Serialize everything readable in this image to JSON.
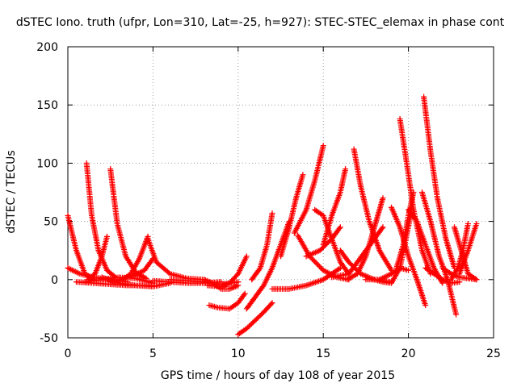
{
  "chart_data": {
    "type": "scatter",
    "title": "dSTEC Iono. truth (ufpr, Lon=310, Lat=-25, h=927): STEC-STEC_elemax in phase cont",
    "xlabel": "GPS time / hours of day 108 of year 2015",
    "ylabel": "dSTEC  / TECUs",
    "xlim": [
      0,
      25
    ],
    "ylim": [
      -50,
      200
    ],
    "xticks": [
      "0",
      "5",
      "10",
      "15",
      "20",
      "25"
    ],
    "yticks": [
      "-50",
      "0",
      "50",
      "100",
      "150",
      "200"
    ],
    "grid": true,
    "marker": "+",
    "color": "#ff0000",
    "series": [
      {
        "x": [
          0.0,
          0.5,
          1.0,
          1.5
        ],
        "y": [
          55,
          25,
          5,
          0
        ]
      },
      {
        "x": [
          1.1,
          1.4,
          1.8,
          2.3,
          2.8
        ],
        "y": [
          100,
          55,
          25,
          8,
          2
        ]
      },
      {
        "x": [
          1.2,
          1.6,
          2.0,
          2.3
        ],
        "y": [
          0,
          5,
          20,
          37
        ]
      },
      {
        "x": [
          2.5,
          2.9,
          3.4,
          4.0,
          4.6
        ],
        "y": [
          95,
          48,
          20,
          6,
          1
        ]
      },
      {
        "x": [
          3.2,
          3.7,
          4.2,
          4.7
        ],
        "y": [
          0,
          5,
          18,
          37
        ]
      },
      {
        "x": [
          4.7,
          5.2,
          6.0,
          7.0,
          8.0
        ],
        "y": [
          35,
          15,
          5,
          1,
          0
        ]
      },
      {
        "x": [
          0.0,
          0.7,
          1.5,
          2.5,
          3.5
        ],
        "y": [
          10,
          5,
          2,
          0,
          -2
        ]
      },
      {
        "x": [
          0.5,
          1.5,
          2.5,
          3.5,
          4.5,
          5.0
        ],
        "y": [
          -2,
          -3,
          -4,
          -5,
          -5,
          -5
        ]
      },
      {
        "x": [
          1.0,
          2.0,
          3.0,
          4.0,
          5.0
        ],
        "y": [
          -2,
          0,
          2,
          1,
          -3
        ]
      },
      {
        "x": [
          2.0,
          3.0,
          4.0,
          5.0,
          6.0
        ],
        "y": [
          2,
          -3,
          -5,
          -6,
          -3
        ]
      },
      {
        "x": [
          3.0,
          3.8,
          4.5,
          5.0
        ],
        "y": [
          0,
          3,
          8,
          18
        ]
      },
      {
        "x": [
          5.0,
          6.0,
          7.0,
          8.0,
          9.0
        ],
        "y": [
          -1,
          -2,
          -3,
          -3,
          -2
        ]
      },
      {
        "x": [
          6.0,
          7.0,
          8.0,
          9.0,
          10.0
        ],
        "y": [
          0,
          -1,
          -2,
          -4,
          -2
        ]
      },
      {
        "x": [
          8.2,
          9.0,
          9.5,
          10.0,
          10.5
        ],
        "y": [
          -5,
          -6,
          -3,
          5,
          20
        ]
      },
      {
        "x": [
          8.0,
          8.5,
          9.0,
          9.5,
          10.0
        ],
        "y": [
          0,
          -3,
          -8,
          -8,
          -5
        ]
      },
      {
        "x": [
          8.3,
          8.8,
          9.5,
          10.0,
          10.4
        ],
        "y": [
          -22,
          -24,
          -25,
          -20,
          -12
        ]
      },
      {
        "x": [
          10.0,
          10.5,
          11.0,
          11.5,
          12.0
        ],
        "y": [
          -47,
          -42,
          -35,
          -28,
          -20
        ]
      },
      {
        "x": [
          10.5,
          11.0,
          11.5,
          12.0,
          12.5,
          13.0
        ],
        "y": [
          -25,
          -15,
          -5,
          10,
          30,
          50
        ]
      },
      {
        "x": [
          10.8,
          11.3,
          11.7,
          12.0
        ],
        "y": [
          0,
          10,
          30,
          57
        ]
      },
      {
        "x": [
          12.0,
          13.0,
          14.0,
          15.0,
          16.0
        ],
        "y": [
          -8,
          -8,
          -5,
          0,
          10
        ]
      },
      {
        "x": [
          12.5,
          13.0,
          13.4,
          13.8
        ],
        "y": [
          20,
          45,
          70,
          90
        ]
      },
      {
        "x": [
          13.5,
          14.2,
          15.0,
          15.8,
          16.5
        ],
        "y": [
          38,
          20,
          8,
          2,
          0
        ]
      },
      {
        "x": [
          13.3,
          14.0,
          14.5,
          15.0
        ],
        "y": [
          40,
          60,
          85,
          115
        ]
      },
      {
        "x": [
          14.5,
          15.0,
          15.5,
          16.0,
          16.5
        ],
        "y": [
          60,
          55,
          35,
          15,
          5
        ]
      },
      {
        "x": [
          15.0,
          15.5,
          16.0,
          16.3
        ],
        "y": [
          30,
          55,
          75,
          95
        ]
      },
      {
        "x": [
          14.0,
          14.8,
          15.5,
          16.0
        ],
        "y": [
          20,
          25,
          35,
          45
        ]
      },
      {
        "x": [
          16.4,
          17.0,
          17.5,
          18.0,
          18.5
        ],
        "y": [
          0,
          5,
          20,
          45,
          70
        ]
      },
      {
        "x": [
          16.8,
          17.2,
          17.7,
          18.3,
          19.0
        ],
        "y": [
          112,
          80,
          50,
          25,
          8
        ]
      },
      {
        "x": [
          16.0,
          16.5,
          17.2,
          18.0,
          19.0
        ],
        "y": [
          25,
          15,
          5,
          0,
          -2
        ]
      },
      {
        "x": [
          15.5,
          16.5,
          17.5,
          18.0,
          18.5
        ],
        "y": [
          2,
          5,
          25,
          35,
          45
        ]
      },
      {
        "x": [
          17.5,
          18.3,
          19.0,
          19.5,
          20.0
        ],
        "y": [
          0,
          0,
          5,
          10,
          8
        ]
      },
      {
        "x": [
          18.0,
          18.5,
          19.0,
          19.5,
          20.2
        ],
        "y": [
          0,
          -2,
          -3,
          10,
          60
        ]
      },
      {
        "x": [
          19.0,
          19.5,
          20.0,
          20.5,
          21.0
        ],
        "y": [
          62,
          45,
          20,
          0,
          -22
        ]
      },
      {
        "x": [
          19.5,
          19.9,
          20.3,
          20.8,
          21.3
        ],
        "y": [
          138,
          100,
          60,
          25,
          5
        ]
      },
      {
        "x": [
          19.3,
          19.7,
          20.0,
          20.3
        ],
        "y": [
          10,
          30,
          55,
          75
        ]
      },
      {
        "x": [
          20.0,
          20.5,
          21.0,
          21.5,
          22.0
        ],
        "y": [
          60,
          50,
          30,
          10,
          -3
        ]
      },
      {
        "x": [
          20.9,
          21.3,
          21.7,
          22.2,
          22.7
        ],
        "y": [
          157,
          110,
          70,
          35,
          10
        ]
      },
      {
        "x": [
          20.8,
          21.3,
          21.8,
          22.3,
          22.8
        ],
        "y": [
          75,
          50,
          20,
          0,
          -30
        ]
      },
      {
        "x": [
          21.0,
          21.5,
          22.0,
          22.5,
          23.0
        ],
        "y": [
          10,
          5,
          0,
          -3,
          -2
        ]
      },
      {
        "x": [
          22.5,
          22.9,
          23.2,
          23.5
        ],
        "y": [
          0,
          10,
          25,
          48
        ]
      },
      {
        "x": [
          22.7,
          23.2,
          23.5,
          24.0
        ],
        "y": [
          45,
          20,
          5,
          0
        ]
      },
      {
        "x": [
          23.0,
          23.5,
          24.0
        ],
        "y": [
          5,
          25,
          48
        ]
      },
      {
        "x": [
          22.0,
          22.5,
          23.0,
          23.5,
          24.0
        ],
        "y": [
          10,
          5,
          2,
          1,
          0
        ]
      }
    ]
  }
}
